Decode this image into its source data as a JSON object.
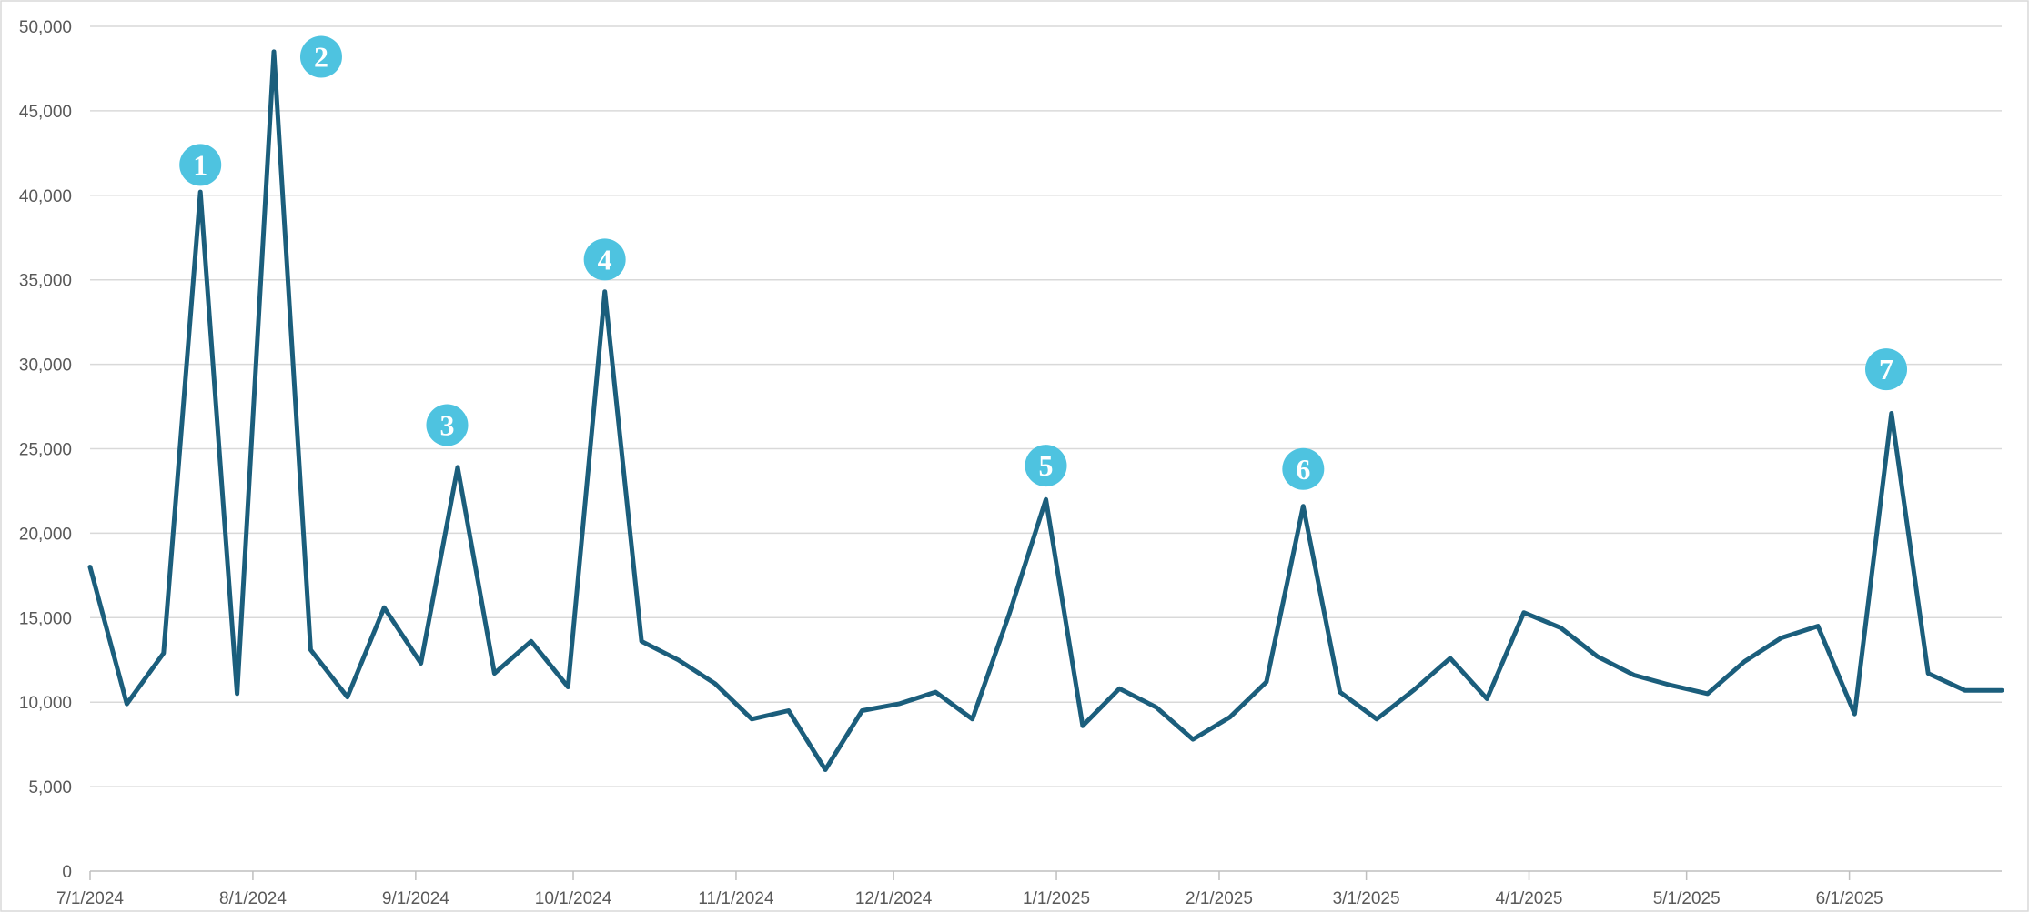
{
  "colors": {
    "line": "#1b5e7c",
    "marker": "#4ec3e0",
    "grid": "#d9d9d9",
    "tick_text": "#595959"
  },
  "chart_data": {
    "type": "line",
    "title": "",
    "xlabel": "",
    "ylabel": "",
    "ylim": [
      0,
      50000
    ],
    "y_ticks": [
      0,
      5000,
      10000,
      15000,
      20000,
      25000,
      30000,
      35000,
      40000,
      45000,
      50000
    ],
    "y_tick_labels": [
      "0",
      "5,000",
      "10,000",
      "15,000",
      "20,000",
      "25,000",
      "30,000",
      "35,000",
      "40,000",
      "45,000",
      "50,000"
    ],
    "x_range": [
      "2024-07-01",
      "2025-06-30"
    ],
    "x_ticks": [
      "2024-07-01",
      "2024-08-01",
      "2024-09-01",
      "2024-10-01",
      "2024-11-01",
      "2024-12-01",
      "2025-01-01",
      "2025-02-01",
      "2025-03-01",
      "2025-04-01",
      "2025-05-01",
      "2025-06-01"
    ],
    "x_tick_labels": [
      "7/1/2024",
      "8/1/2024",
      "9/1/2024",
      "10/1/2024",
      "11/1/2024",
      "12/1/2024",
      "1/1/2025",
      "2/1/2025",
      "3/1/2025",
      "4/1/2025",
      "5/1/2025",
      "6/1/2025"
    ],
    "grid": true,
    "legend": "none",
    "series": [
      {
        "x": [
          "2024-07-01",
          "2024-07-08",
          "2024-07-15",
          "2024-07-22",
          "2024-07-29",
          "2024-08-05",
          "2024-08-12",
          "2024-08-19",
          "2024-08-26",
          "2024-09-02",
          "2024-09-09",
          "2024-09-16",
          "2024-09-23",
          "2024-09-30",
          "2024-10-07",
          "2024-10-14",
          "2024-10-21",
          "2024-10-28",
          "2024-11-04",
          "2024-11-11",
          "2024-11-18",
          "2024-11-25",
          "2024-12-02",
          "2024-12-09",
          "2024-12-16",
          "2024-12-23",
          "2024-12-30",
          "2025-01-06",
          "2025-01-13",
          "2025-01-20",
          "2025-01-27",
          "2025-02-03",
          "2025-02-10",
          "2025-02-17",
          "2025-02-24",
          "2025-03-03",
          "2025-03-10",
          "2025-03-17",
          "2025-03-24",
          "2025-03-31",
          "2025-04-07",
          "2025-04-14",
          "2025-04-21",
          "2025-04-28",
          "2025-05-05",
          "2025-05-12",
          "2025-05-19",
          "2025-05-26",
          "2025-06-02",
          "2025-06-09",
          "2025-06-16",
          "2025-06-23",
          "2025-06-30"
        ],
        "values": [
          18000,
          9900,
          12900,
          40200,
          10500,
          48500,
          13100,
          10300,
          15600,
          12300,
          23900,
          11700,
          13600,
          10900,
          34300,
          13600,
          12500,
          11100,
          9000,
          9500,
          6000,
          9500,
          9900,
          10600,
          9000,
          15200,
          22000,
          8600,
          10800,
          9700,
          7800,
          9100,
          11200,
          21600,
          10600,
          9000,
          10700,
          12600,
          10200,
          15300,
          14400,
          12700,
          11600,
          11000,
          10500,
          12400,
          13800,
          14500,
          9300,
          27100,
          11700,
          10700,
          10700
        ]
      }
    ],
    "annotations": [
      {
        "label": "1",
        "x": "2024-07-22",
        "y": 41800
      },
      {
        "label": "2",
        "x": "2024-08-14",
        "y": 48200
      },
      {
        "label": "3",
        "x": "2024-09-07",
        "y": 26400
      },
      {
        "label": "4",
        "x": "2024-10-07",
        "y": 36200
      },
      {
        "label": "5",
        "x": "2024-12-30",
        "y": 24000
      },
      {
        "label": "6",
        "x": "2025-02-17",
        "y": 23800
      },
      {
        "label": "7",
        "x": "2025-06-08",
        "y": 29700
      }
    ]
  }
}
